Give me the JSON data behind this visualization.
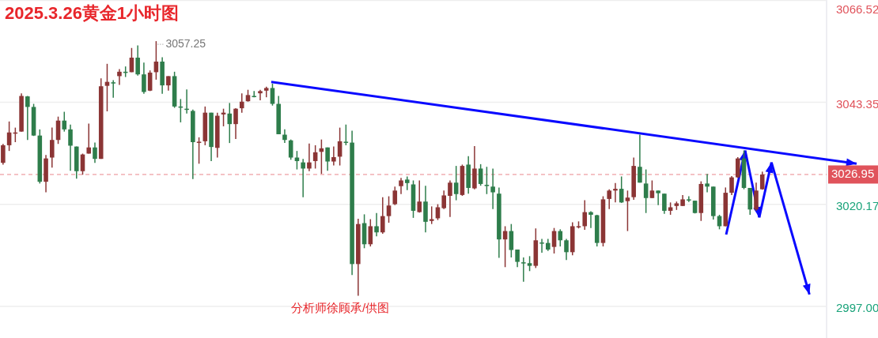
{
  "chart_data": {
    "type": "candlestick",
    "title": "2025.3.26黄金1小时图",
    "categories": [
      null,
      null,
      null,
      null,
      null,
      null,
      null,
      null,
      null,
      null,
      null,
      null,
      null,
      null,
      null,
      null,
      null,
      null,
      null,
      null,
      null,
      null,
      null,
      null,
      null,
      null,
      null,
      null,
      null,
      null,
      null,
      null,
      null,
      null,
      null,
      null,
      null,
      null,
      null,
      null,
      null,
      null,
      null,
      null,
      null,
      null,
      null,
      null,
      null,
      null,
      null,
      null,
      null,
      null,
      null,
      null,
      null,
      null,
      null,
      null,
      null,
      null,
      null,
      null,
      null,
      null,
      null,
      null,
      null,
      null,
      null,
      null,
      null,
      null,
      null,
      null,
      null,
      null,
      null,
      null,
      null,
      null,
      null,
      null,
      null,
      null,
      null,
      null,
      null,
      null,
      null,
      null,
      null,
      null,
      null,
      null,
      null,
      null,
      null,
      null,
      null,
      null,
      null,
      null,
      null,
      null,
      null,
      null,
      null,
      null,
      null,
      null,
      null,
      null,
      null,
      null,
      null,
      null,
      null,
      null,
      null,
      null,
      null,
      null,
      null,
      null,
      null,
      null,
      null,
      null,
      null,
      null,
      null,
      null,
      null
    ],
    "ohlc": [
      [
        3029.6,
        3033.9,
        3029.2,
        3033.6
      ],
      [
        3033.6,
        3039.0,
        3032.3,
        3036.5
      ],
      [
        3036.4,
        3037.6,
        3034.3,
        3036.5
      ],
      [
        3036.7,
        3045.4,
        3036.7,
        3044.8
      ],
      [
        3044.7,
        3044.8,
        3034.8,
        3042.3
      ],
      [
        3042.3,
        3043.0,
        3035.7,
        3035.8
      ],
      [
        3035.8,
        3037.2,
        3024.9,
        3025.3
      ],
      [
        3025.3,
        3031.4,
        3022.9,
        3030.6
      ],
      [
        3030.8,
        3037.6,
        3028.5,
        3034.8
      ],
      [
        3034.8,
        3040.1,
        3033.9,
        3039.2
      ],
      [
        3039.2,
        3041.2,
        3036.7,
        3037.2
      ],
      [
        3037.2,
        3038.3,
        3027.8,
        3033.5
      ],
      [
        3033.3,
        3033.3,
        3026.0,
        3027.7
      ],
      [
        3027.7,
        3031.7,
        3026.9,
        3031.5
      ],
      [
        3031.7,
        3038.5,
        3031.7,
        3033.1
      ],
      [
        3033.1,
        3034.2,
        3029.6,
        3030.5
      ],
      [
        3030.5,
        3048.8,
        3030.5,
        3047.0
      ],
      [
        3047.1,
        3052.1,
        3041.3,
        3048.0
      ],
      [
        3047.9,
        3048.4,
        3044.4,
        3047.8
      ],
      [
        3049.3,
        3050.9,
        3047.3,
        3050.3
      ],
      [
        3050.3,
        3051.5,
        3049.1,
        3050.2
      ],
      [
        3050.2,
        3055.7,
        3050.2,
        3053.5
      ],
      [
        3053.5,
        3056.3,
        3049.4,
        3049.7
      ],
      [
        3049.7,
        3052.4,
        3045.3,
        3045.7
      ],
      [
        3046.0,
        3050.6,
        3045.9,
        3050.1
      ],
      [
        3050.2,
        3057.25,
        3048.5,
        3052.6
      ],
      [
        3052.6,
        3053.6,
        3045.3,
        3047.2
      ],
      [
        3047.2,
        3049.3,
        3046.0,
        3049.3
      ],
      [
        3049.3,
        3050.3,
        3042.1,
        3042.4
      ],
      [
        3042.4,
        3044.1,
        3038.8,
        3042.3
      ],
      [
        3041.9,
        3046.3,
        3040.8,
        3041.8
      ],
      [
        3041.4,
        3041.7,
        3025.9,
        3034.3
      ],
      [
        3034.3,
        3035.4,
        3029.4,
        3034.4
      ],
      [
        3034.5,
        3042.4,
        3033.6,
        3041.0
      ],
      [
        3041.0,
        3041.0,
        3030.0,
        3033.2
      ],
      [
        3033.0,
        3041.0,
        3030.8,
        3040.3
      ],
      [
        3040.6,
        3041.9,
        3037.9,
        3041.0
      ],
      [
        3040.8,
        3043.2,
        3034.1,
        3038.4
      ],
      [
        3038.4,
        3042.0,
        3035.0,
        3041.9
      ],
      [
        3042.0,
        3045.4,
        3041.0,
        3043.5
      ],
      [
        3043.6,
        3046.2,
        3043.5,
        3045.0
      ],
      [
        3044.8,
        3045.9,
        3044.5,
        3044.7
      ],
      [
        3045.4,
        3046.2,
        3043.8,
        3045.9
      ],
      [
        3046.0,
        3046.9,
        3044.5,
        3046.6
      ],
      [
        3046.6,
        3047.6,
        3042.6,
        3043.0
      ],
      [
        3043.0,
        3044.8,
        3036.1,
        3036.1
      ],
      [
        3036.0,
        3037.2,
        3034.1,
        3034.8
      ],
      [
        3034.7,
        3034.9,
        3030.3,
        3030.8
      ],
      [
        3030.8,
        3032.3,
        3028.1,
        3030.0
      ],
      [
        3029.7,
        3030.5,
        3021.8,
        3028.3
      ],
      [
        3028.3,
        3034.0,
        3027.7,
        3029.7
      ],
      [
        3030.0,
        3033.6,
        3028.3,
        3032.0
      ],
      [
        3032.1,
        3034.9,
        3027.1,
        3032.9
      ],
      [
        3033.1,
        3033.1,
        3027.8,
        3029.9
      ],
      [
        3029.9,
        3033.3,
        3029.0,
        3030.9
      ],
      [
        3031.0,
        3037.6,
        3029.0,
        3034.5
      ],
      [
        3034.4,
        3038.3,
        3033.6,
        3034.3
      ],
      [
        3034.2,
        3036.9,
        3004.1,
        3006.6
      ],
      [
        3006.6,
        3016.9,
        2999.4,
        3015.7
      ],
      [
        3015.9,
        3017.9,
        3010.2,
        3011.1
      ],
      [
        3011.1,
        3016.8,
        3010.6,
        3015.2
      ],
      [
        3015.2,
        3018.2,
        3012.9,
        3013.8
      ],
      [
        3013.8,
        3021.8,
        3013.5,
        3017.5
      ],
      [
        3017.5,
        3022.0,
        3016.0,
        3019.9
      ],
      [
        3020.2,
        3024.2,
        3020.0,
        3023.3
      ],
      [
        3024.3,
        3026.2,
        3022.5,
        3025.6
      ],
      [
        3025.8,
        3026.5,
        3023.4,
        3025.0
      ],
      [
        3024.7,
        3025.6,
        3017.1,
        3018.7
      ],
      [
        3018.4,
        3025.6,
        3018.3,
        3020.8
      ],
      [
        3020.8,
        3024.4,
        3013.8,
        3016.2
      ],
      [
        3016.4,
        3019.7,
        3015.7,
        3016.8
      ],
      [
        3017.0,
        3020.2,
        3016.6,
        3019.5
      ],
      [
        3019.3,
        3023.3,
        3019.1,
        3022.2
      ],
      [
        3022.1,
        3025.6,
        3017.3,
        3025.1
      ],
      [
        3025.1,
        3028.9,
        3021.1,
        3022.5
      ],
      [
        3022.3,
        3029.2,
        3022.1,
        3028.9
      ],
      [
        3029.2,
        3031.1,
        3022.6,
        3023.9
      ],
      [
        3023.8,
        3033.4,
        3023.6,
        3028.3
      ],
      [
        3028.3,
        3029.3,
        3024.4,
        3024.8
      ],
      [
        3024.6,
        3028.7,
        3022.5,
        3024.5
      ],
      [
        3024.2,
        3028.3,
        3019.1,
        3022.9
      ],
      [
        3022.6,
        3024.0,
        3008.0,
        3012.2
      ],
      [
        3012.2,
        3015.2,
        3005.9,
        3014.1
      ],
      [
        3014.1,
        3015.7,
        3008.1,
        3009.8
      ],
      [
        3009.9,
        3009.9,
        3005.9,
        3007.1
      ],
      [
        3007.0,
        3008.1,
        3002.6,
        3006.9
      ],
      [
        3006.8,
        3008.4,
        3005.0,
        3006.2
      ],
      [
        3006.2,
        3014.7,
        3005.7,
        3012.0
      ],
      [
        3011.5,
        3012.3,
        3009.2,
        3011.4
      ],
      [
        3011.4,
        3012.3,
        3009.6,
        3009.9
      ],
      [
        3010.5,
        3014.8,
        3009.0,
        3014.1
      ],
      [
        3014.1,
        3014.5,
        3010.6,
        3012.0
      ],
      [
        3012.0,
        3012.3,
        3007.5,
        3009.3
      ],
      [
        3009.3,
        3016.1,
        3008.6,
        3015.2
      ],
      [
        3015.1,
        3016.3,
        3014.7,
        3015.2
      ],
      [
        3015.2,
        3021.1,
        3014.4,
        3018.4
      ],
      [
        3018.4,
        3018.6,
        3014.8,
        3017.8
      ],
      [
        3017.7,
        3017.8,
        3010.6,
        3011.4
      ],
      [
        3011.4,
        3022.0,
        3010.6,
        3021.3
      ],
      [
        3021.4,
        3023.6,
        3019.1,
        3023.3
      ],
      [
        3023.3,
        3025.0,
        3020.6,
        3023.7
      ],
      [
        3023.7,
        3026.5,
        3020.5,
        3020.6
      ],
      [
        3020.9,
        3023.3,
        3014.1,
        3021.7
      ],
      [
        3021.8,
        3030.8,
        3021.2,
        3028.9
      ],
      [
        3028.7,
        3036.0,
        3025.1,
        3025.1
      ],
      [
        3024.9,
        3028.1,
        3018.2,
        3021.6
      ],
      [
        3021.6,
        3025.6,
        3021.6,
        3023.3
      ],
      [
        3023.3,
        3023.3,
        3020.0,
        3022.7
      ],
      [
        3022.6,
        3022.6,
        3018.0,
        3018.7
      ],
      [
        3018.7,
        3020.6,
        3017.8,
        3019.5
      ],
      [
        3019.8,
        3020.8,
        3018.9,
        3020.4
      ],
      [
        3019.8,
        3022.3,
        3019.8,
        3021.3
      ],
      [
        3021.3,
        3022.0,
        3020.7,
        3021.2
      ],
      [
        3021.0,
        3021.0,
        3018.1,
        3018.2
      ],
      [
        3018.2,
        3025.4,
        3016.4,
        3024.8
      ],
      [
        3024.9,
        3027.1,
        3022.9,
        3024.2
      ],
      [
        3024.2,
        3024.2,
        3016.7,
        3017.5
      ],
      [
        3017.5,
        3017.8,
        3014.5,
        3015.2
      ],
      [
        3015.2,
        3024.0,
        3015.2,
        3022.8
      ],
      [
        3022.8,
        3026.6,
        3022.3,
        3026.3
      ],
      [
        3026.3,
        3030.9,
        3026.2,
        3030.6
      ],
      [
        3030.6,
        3032.4,
        3023.6,
        3023.9
      ],
      [
        3023.9,
        3023.9,
        3017.8,
        3019.0
      ],
      [
        3019.0,
        3025.1,
        3018.7,
        3023.3
      ],
      [
        3023.6,
        3027.6,
        3023.5,
        3026.95
      ],
      null,
      null,
      null,
      null,
      null,
      null,
      null,
      null,
      null,
      null
    ],
    "colors": [
      "#8b3535",
      "#8b3535",
      "#8b3535",
      "#8b3535",
      "#2e7d4b",
      "#2e7d4b",
      "#2e7d4b",
      "#8b3535",
      "#8b3535",
      "#8b3535",
      "#2e7d4b",
      "#2e7d4b",
      "#2e7d4b",
      "#8b3535",
      "#8b3535",
      "#2e7d4b",
      "#8b3535",
      "#8b3535",
      "#2e7d4b",
      "#8b3535",
      "#2e7d4b",
      "#8b3535",
      "#2e7d4b",
      "#2e7d4b",
      "#8b3535",
      "#8b3535",
      "#2e7d4b",
      "#8b3535",
      "#2e7d4b",
      "#2e7d4b",
      "#2e7d4b",
      "#2e7d4b",
      "#8b3535",
      "#8b3535",
      "#2e7d4b",
      "#8b3535",
      "#8b3535",
      "#2e7d4b",
      "#8b3535",
      "#8b3535",
      "#8b3535",
      "#2e7d4b",
      "#8b3535",
      "#8b3535",
      "#2e7d4b",
      "#2e7d4b",
      "#2e7d4b",
      "#2e7d4b",
      "#2e7d4b",
      "#2e7d4b",
      "#8b3535",
      "#8b3535",
      "#8b3535",
      "#2e7d4b",
      "#8b3535",
      "#8b3535",
      "#2e7d4b",
      "#2e7d4b",
      "#8b3535",
      "#2e7d4b",
      "#8b3535",
      "#2e7d4b",
      "#8b3535",
      "#8b3535",
      "#8b3535",
      "#8b3535",
      "#2e7d4b",
      "#2e7d4b",
      "#8b3535",
      "#2e7d4b",
      "#8b3535",
      "#8b3535",
      "#8b3535",
      "#8b3535",
      "#2e7d4b",
      "#8b3535",
      "#2e7d4b",
      "#8b3535",
      "#2e7d4b",
      "#2e7d4b",
      "#2e7d4b",
      "#2e7d4b",
      "#8b3535",
      "#2e7d4b",
      "#2e7d4b",
      "#2e7d4b",
      "#2e7d4b",
      "#8b3535",
      "#2e7d4b",
      "#2e7d4b",
      "#8b3535",
      "#2e7d4b",
      "#2e7d4b",
      "#8b3535",
      "#8b3535",
      "#8b3535",
      "#2e7d4b",
      "#2e7d4b",
      "#8b3535",
      "#8b3535",
      "#8b3535",
      "#2e7d4b",
      "#8b3535",
      "#8b3535",
      "#2e7d4b",
      "#2e7d4b",
      "#8b3535",
      "#2e7d4b",
      "#2e7d4b",
      "#8b3535",
      "#8b3535",
      "#8b3535",
      "#2e7d4b",
      "#2e7d4b",
      "#8b3535",
      "#2e7d4b",
      "#2e7d4b",
      "#2e7d4b",
      "#8b3535",
      "#8b3535",
      "#8b3535",
      "#2e7d4b",
      "#2e7d4b",
      "#8b3535",
      "#8b3535",
      null,
      null,
      null,
      null,
      null,
      null,
      null,
      null,
      null,
      null
    ],
    "ylim": [
      2989.8,
      3066.6
    ],
    "yticks": [
      {
        "value": 3066.52,
        "label": "3066.52"
      },
      3043.35,
      3020.17,
      {
        "value": 2997,
        "label": "2997.00"
      }
    ],
    "grid": "y",
    "ref_lines": [
      {
        "axis": "y",
        "value": 3026.95,
        "label": "3026.95",
        "color": "#e0535b",
        "line_style": "dashed"
      }
    ],
    "annotations": [
      "分析师徐顾承/供图",
      "3057.25"
    ]
  }
}
